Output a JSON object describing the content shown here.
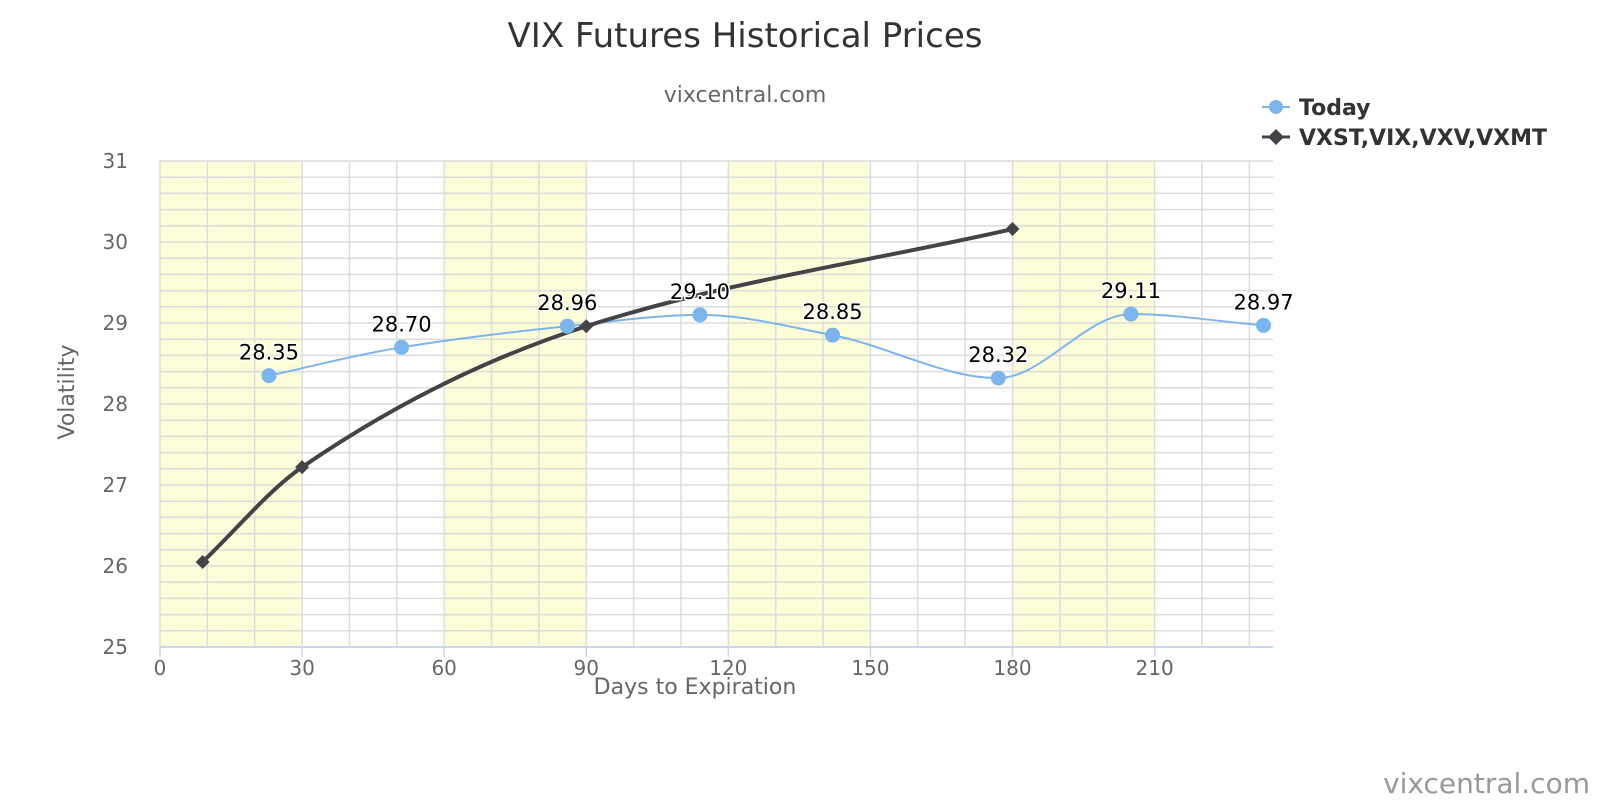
{
  "chart_data": {
    "type": "line",
    "title": "VIX Futures Historical Prices",
    "subtitle": "vixcentral.com",
    "xlabel": "Days to Expiration",
    "ylabel": "Volatility",
    "xlim": [
      0,
      235
    ],
    "ylim": [
      25,
      31
    ],
    "x_ticks": [
      0,
      30,
      60,
      90,
      120,
      150,
      180,
      210
    ],
    "y_ticks": [
      25,
      26,
      27,
      28,
      29,
      30,
      31
    ],
    "x_tick_labels": [
      "0",
      "30",
      "60",
      "90",
      "120",
      "150",
      "180",
      "210"
    ],
    "y_tick_labels": [
      "25",
      "26",
      "27",
      "28",
      "29",
      "30",
      "31"
    ],
    "grid": true,
    "legend_position": "top-right",
    "shaded_x_bands": [
      [
        0,
        30
      ],
      [
        60,
        90
      ],
      [
        120,
        150
      ],
      [
        180,
        210
      ]
    ],
    "band_color": "#fdfdd9",
    "series": [
      {
        "name": "Today",
        "color": "#7cb5ec",
        "marker": "circle",
        "x": [
          23,
          51,
          86,
          114,
          142,
          177,
          205,
          233
        ],
        "y": [
          28.35,
          28.7,
          28.96,
          29.1,
          28.85,
          28.32,
          29.11,
          28.97
        ],
        "data_labels": [
          "28.35",
          "28.70",
          "28.96",
          "29.10",
          "28.85",
          "28.32",
          "29.11",
          "28.97"
        ]
      },
      {
        "name": "VXST,VIX,VXV,VXMT",
        "color": "#434348",
        "marker": "diamond",
        "x": [
          9,
          30,
          90,
          180
        ],
        "y": [
          26.05,
          27.22,
          28.96,
          30.16
        ]
      }
    ],
    "credit": "vixcentral.com"
  }
}
